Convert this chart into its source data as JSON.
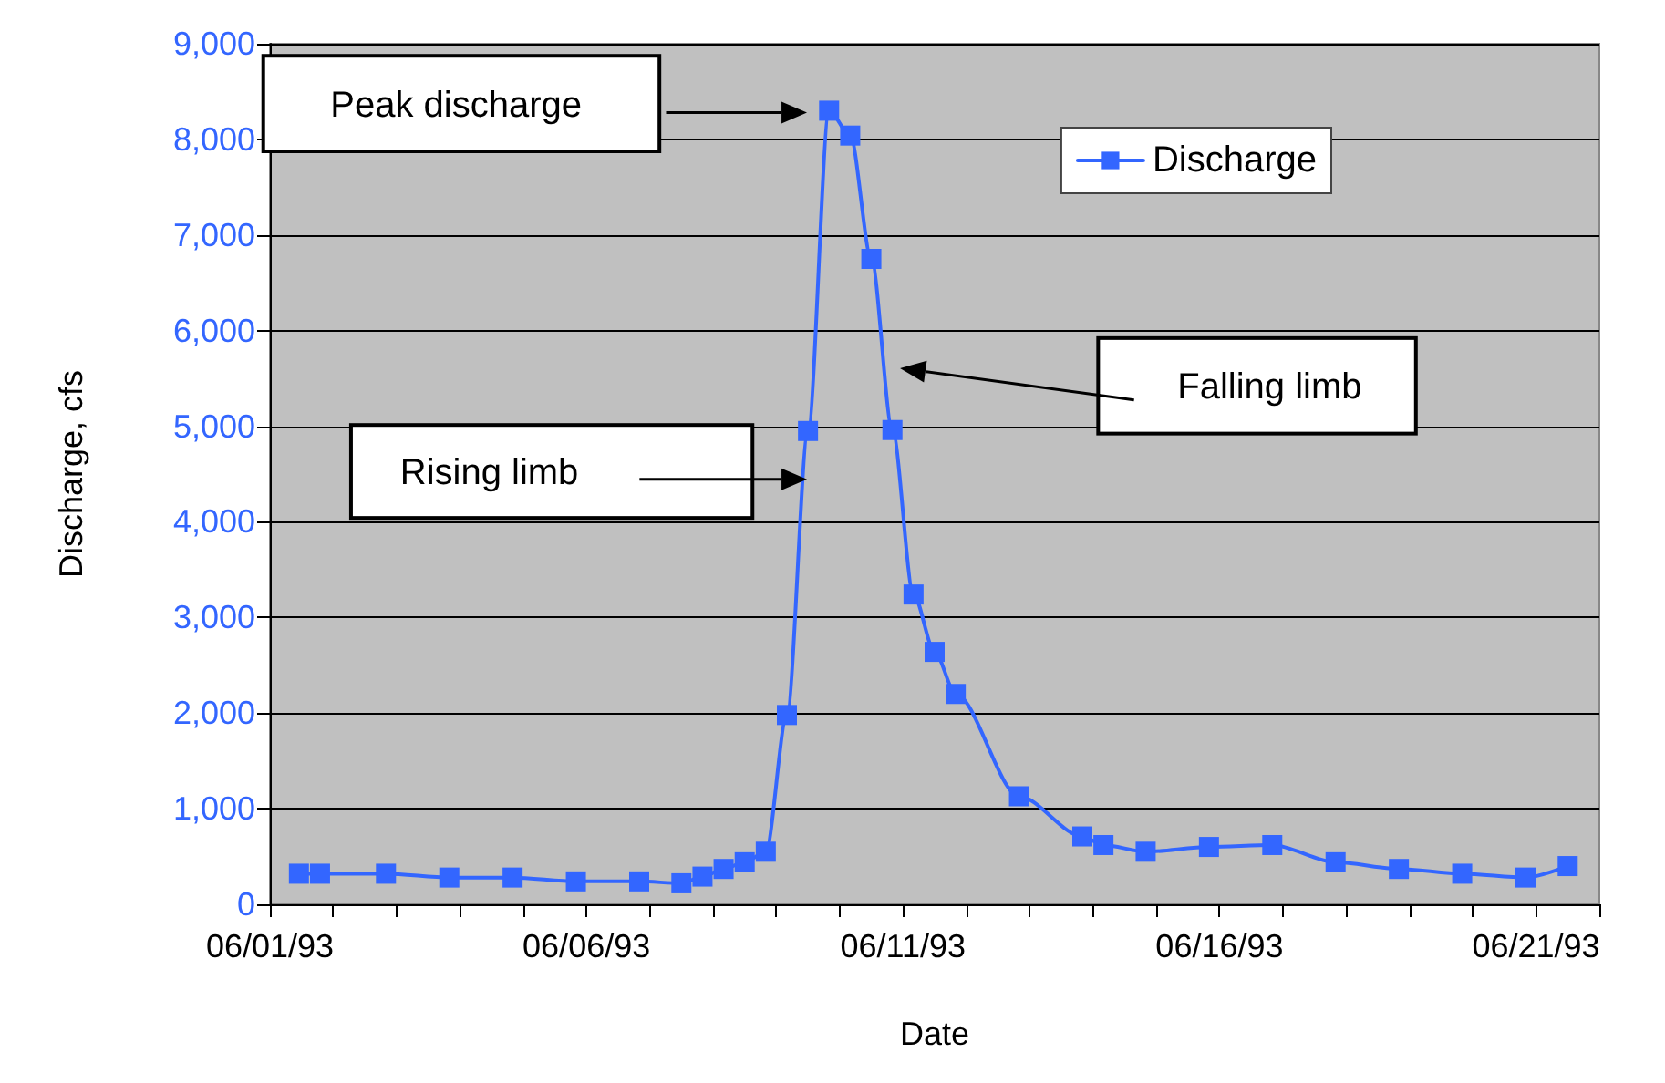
{
  "chart_data": {
    "type": "line",
    "xlabel": "Date",
    "ylabel": "Discharge, cfs",
    "x": [
      "1993-06-01T11:00",
      "1993-06-01T19:00",
      "1993-06-02T20:00",
      "1993-06-03T20:00",
      "1993-06-04T20:00",
      "1993-06-05T20:00",
      "1993-06-06T20:00",
      "1993-06-07T12:00",
      "1993-06-07T20:00",
      "1993-06-08T04:00",
      "1993-06-08T12:00",
      "1993-06-08T20:00",
      "1993-06-09T04:00",
      "1993-06-09T12:00",
      "1993-06-09T20:00",
      "1993-06-10T04:00",
      "1993-06-10T12:00",
      "1993-06-10T20:00",
      "1993-06-11T04:00",
      "1993-06-11T12:00",
      "1993-06-11T20:00",
      "1993-06-12T20:00",
      "1993-06-13T20:00",
      "1993-06-14T04:00",
      "1993-06-14T20:00",
      "1993-06-15T20:00",
      "1993-06-16T20:00",
      "1993-06-17T20:00",
      "1993-06-18T20:00",
      "1993-06-19T20:00",
      "1993-06-20T20:00",
      "1993-06-21T12:00"
    ],
    "series": [
      {
        "name": "Discharge",
        "color": "#3366ff",
        "values": [
          320,
          320,
          320,
          280,
          280,
          240,
          240,
          220,
          290,
          370,
          440,
          550,
          1980,
          4950,
          8300,
          8040,
          6750,
          4960,
          3240,
          2640,
          2200,
          1130,
          710,
          620,
          550,
          600,
          620,
          440,
          370,
          320,
          280,
          400
        ]
      }
    ],
    "xlim": [
      "1993-06-01",
      "1993-06-22"
    ],
    "xticks": [
      {
        "value": "1993-06-01",
        "label": "06/01/93"
      },
      {
        "value": "1993-06-02",
        "label": null
      },
      {
        "value": "1993-06-03",
        "label": null
      },
      {
        "value": "1993-06-04",
        "label": null
      },
      {
        "value": "1993-06-05",
        "label": null
      },
      {
        "value": "1993-06-06",
        "label": "06/06/93"
      },
      {
        "value": "1993-06-07",
        "label": null
      },
      {
        "value": "1993-06-08",
        "label": null
      },
      {
        "value": "1993-06-09",
        "label": null
      },
      {
        "value": "1993-06-10",
        "label": null
      },
      {
        "value": "1993-06-11",
        "label": "06/11/93"
      },
      {
        "value": "1993-06-12",
        "label": null
      },
      {
        "value": "1993-06-13",
        "label": null
      },
      {
        "value": "1993-06-14",
        "label": null
      },
      {
        "value": "1993-06-15",
        "label": null
      },
      {
        "value": "1993-06-16",
        "label": "06/16/93"
      },
      {
        "value": "1993-06-17",
        "label": null
      },
      {
        "value": "1993-06-18",
        "label": null
      },
      {
        "value": "1993-06-19",
        "label": null
      },
      {
        "value": "1993-06-20",
        "label": null
      },
      {
        "value": "1993-06-21",
        "label": "06/21/93"
      },
      {
        "value": "1993-06-22",
        "label": null
      }
    ],
    "ylim": [
      0,
      9000
    ],
    "yticks": [
      0,
      {
        "value": 1000,
        "label": "1,000"
      },
      {
        "value": 2000,
        "label": "2,000"
      },
      {
        "value": 3000,
        "label": "3,000"
      },
      {
        "value": 4000,
        "label": "4,000"
      },
      {
        "value": 5000,
        "label": "5,000"
      },
      {
        "value": 6000,
        "label": "6,000"
      },
      {
        "value": 7000,
        "label": "7,000"
      },
      {
        "value": 8000,
        "label": "8,000"
      },
      {
        "value": 9000,
        "label": "9,000"
      }
    ],
    "annotations": [
      "Peak discharge",
      "Rising limb",
      "Falling limb"
    ],
    "grid": "y",
    "legend": "top right",
    "marker": "square",
    "line_style": "solid"
  }
}
